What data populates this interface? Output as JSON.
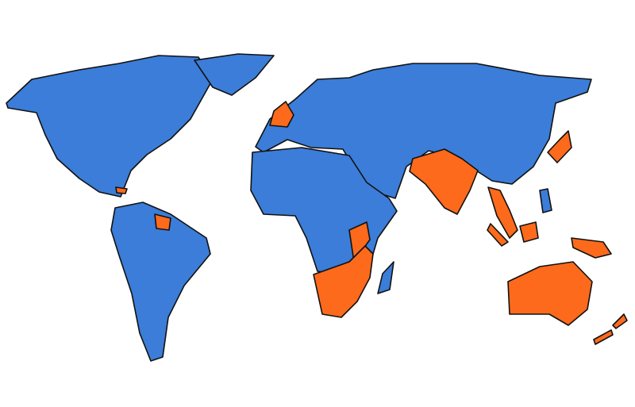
{
  "map": {
    "colors": {
      "right_hand_traffic": "#3b7dd8",
      "left_hand_traffic": "#fe6a1c",
      "border": "#111111",
      "background": "#ffffff"
    },
    "regions": [
      {
        "id": "north-america",
        "category": "right_hand_traffic"
      },
      {
        "id": "greenland",
        "category": "right_hand_traffic"
      },
      {
        "id": "south-america",
        "category": "right_hand_traffic"
      },
      {
        "id": "guyana-suriname",
        "category": "left_hand_traffic"
      },
      {
        "id": "caribbean-islands",
        "category": "left_hand_traffic"
      },
      {
        "id": "eurasia",
        "category": "right_hand_traffic"
      },
      {
        "id": "united-kingdom-ireland",
        "category": "left_hand_traffic"
      },
      {
        "id": "africa",
        "category": "right_hand_traffic"
      },
      {
        "id": "east-africa",
        "category": "left_hand_traffic"
      },
      {
        "id": "southern-africa",
        "category": "left_hand_traffic"
      },
      {
        "id": "madagascar",
        "category": "right_hand_traffic"
      },
      {
        "id": "south-asia",
        "category": "left_hand_traffic"
      },
      {
        "id": "southeast-asia-mainland",
        "category": "left_hand_traffic"
      },
      {
        "id": "japan",
        "category": "left_hand_traffic"
      },
      {
        "id": "philippines",
        "category": "right_hand_traffic"
      },
      {
        "id": "indonesia",
        "category": "left_hand_traffic"
      },
      {
        "id": "australia",
        "category": "left_hand_traffic"
      },
      {
        "id": "new-zealand",
        "category": "left_hand_traffic"
      }
    ]
  }
}
